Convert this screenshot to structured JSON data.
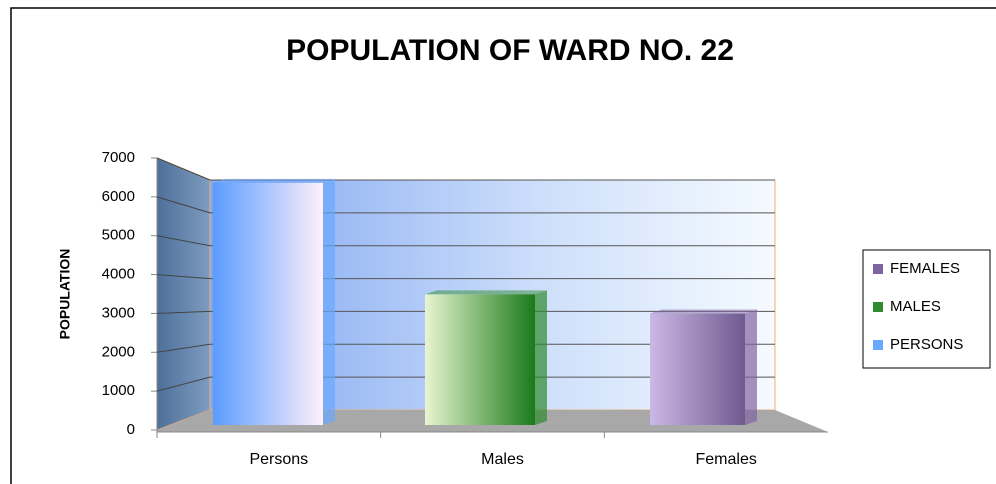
{
  "chart_data": {
    "type": "bar3d",
    "title": "POPULATION OF WARD NO. 22",
    "y_label": "POPULATION",
    "categories": [
      "Persons",
      "Males",
      "Females"
    ],
    "series": [
      {
        "name": "FEMALES",
        "color": "#8064a2",
        "values": [
          null,
          null,
          2900
        ]
      },
      {
        "name": "MALES",
        "color": "#2e8b2e",
        "values": [
          null,
          3400,
          null
        ]
      },
      {
        "name": "PERSONS",
        "color": "#6aa8ff",
        "values": [
          6300,
          null,
          null
        ]
      }
    ],
    "ylim": [
      0,
      7000
    ],
    "yticks": [
      0,
      1000,
      2000,
      3000,
      4000,
      5000,
      6000,
      7000
    ],
    "grid": true
  }
}
